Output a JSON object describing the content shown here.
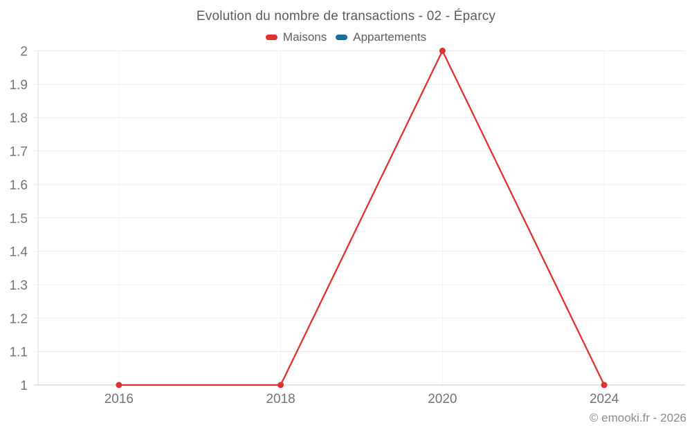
{
  "chart": {
    "title": "Evolution du nombre de transactions - 02 - Éparcy"
  },
  "legend": {
    "items": [
      {
        "label": "Maisons",
        "color": "#e03131"
      },
      {
        "label": "Appartements",
        "color": "#1c6d9c"
      }
    ]
  },
  "footer": {
    "credit": "© emooki.fr - 2026"
  },
  "colors": {
    "grid_horizontal": "#ececec",
    "grid_vertical": "#f2f2f2",
    "axis_left": "#dcdcdc",
    "axis_bottom": "#c9c9c9",
    "tick_text": "#747474"
  },
  "chart_data": {
    "type": "line",
    "title": "Evolution du nombre de transactions - 02 - Éparcy",
    "categories": [
      "2016",
      "2018",
      "2020",
      "2024"
    ],
    "series": [
      {
        "name": "Maisons",
        "color": "#e03131",
        "values": [
          1,
          1,
          2,
          1
        ]
      },
      {
        "name": "Appartements",
        "color": "#1c6d9c",
        "values": []
      }
    ],
    "xlabel": "",
    "ylabel": "",
    "ylim": [
      1,
      2
    ],
    "y_ticks": [
      1,
      1.1,
      1.2,
      1.3,
      1.4,
      1.5,
      1.6,
      1.7,
      1.8,
      1.9,
      2
    ],
    "grid": true,
    "legend_position": "top",
    "point_markers": true,
    "footer": "© emooki.fr - 2026"
  }
}
